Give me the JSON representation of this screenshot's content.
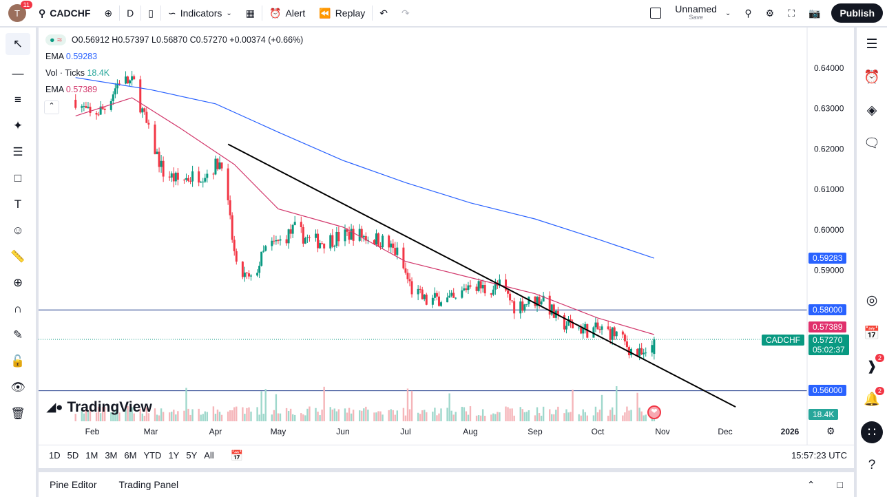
{
  "header": {
    "avatar_initial": "T",
    "avatar_badge": "11",
    "symbol": "CADCHF",
    "interval": "D",
    "indicators": "Indicators",
    "alert": "Alert",
    "replay": "Replay",
    "layout_name": "Unnamed",
    "layout_save": "Save",
    "publish": "Publish"
  },
  "legend": {
    "ohlc": "O0.56912 H0.57397 L0.56870 C0.57270 +0.00374 (+0.66%)",
    "ema1_label": "EMA",
    "ema1_value": "0.59283",
    "vol_label": "Vol · Ticks",
    "vol_value": "18.4K",
    "ema2_label": "EMA",
    "ema2_value": "0.57389"
  },
  "colors": {
    "up": "#089981",
    "down": "#f23645",
    "ema_slow": "#2962ff",
    "ema_fast": "#d2386c",
    "trendline": "#000000",
    "level_line": "#1e3a8a"
  },
  "price_axis": {
    "ticks": [
      "0.64000",
      "0.63000",
      "0.62000",
      "0.61000",
      "0.60000",
      "0.59000"
    ],
    "tick_values": [
      0.64,
      0.63,
      0.62,
      0.61,
      0.6,
      0.59
    ],
    "labels": {
      "ema_slow": "0.59283",
      "level_high": "0.58000",
      "ema_fast": "0.57389",
      "symbol": "CADCHF",
      "last": "0.57270",
      "countdown": "05:02:37",
      "level_low": "0.56000",
      "volume": "18.4K"
    }
  },
  "time_axis": {
    "ticks": [
      "Feb",
      "Mar",
      "Apr",
      "May",
      "Jun",
      "Jul",
      "Aug",
      "Sep",
      "Oct",
      "Nov",
      "Dec",
      "2026"
    ]
  },
  "chart_data": {
    "type": "candlestick",
    "symbol": "CADCHF",
    "interval": "D",
    "weekly_close_dates": [
      "2025-01-24",
      "2025-01-31",
      "2025-02-07",
      "2025-02-14",
      "2025-02-21",
      "2025-02-28",
      "2025-03-07",
      "2025-03-14",
      "2025-03-21",
      "2025-03-28",
      "2025-04-04",
      "2025-04-11",
      "2025-04-18",
      "2025-04-25",
      "2025-05-02",
      "2025-05-09",
      "2025-05-16",
      "2025-05-23",
      "2025-05-30",
      "2025-06-06",
      "2025-06-13",
      "2025-06-20",
      "2025-06-27",
      "2025-07-04",
      "2025-07-11",
      "2025-07-18",
      "2025-07-25",
      "2025-08-01",
      "2025-08-08",
      "2025-08-15",
      "2025-08-22",
      "2025-08-29",
      "2025-09-05",
      "2025-09-12",
      "2025-09-19",
      "2025-09-26",
      "2025-10-03",
      "2025-10-10",
      "2025-10-17",
      "2025-10-24",
      "2025-10-28"
    ],
    "weekly_close": [
      0.632,
      0.628,
      0.63,
      0.637,
      0.636,
      0.624,
      0.614,
      0.612,
      0.613,
      0.614,
      0.617,
      0.59,
      0.587,
      0.595,
      0.597,
      0.6,
      0.597,
      0.597,
      0.598,
      0.599,
      0.598,
      0.597,
      0.594,
      0.585,
      0.582,
      0.583,
      0.582,
      0.587,
      0.585,
      0.586,
      0.581,
      0.582,
      0.583,
      0.577,
      0.576,
      0.575,
      0.575,
      0.574,
      0.57,
      0.568,
      0.5727
    ],
    "ema_slow": {
      "dates": [
        "2025-01-24",
        "2025-03-01",
        "2025-04-01",
        "2025-05-01",
        "2025-06-01",
        "2025-07-01",
        "2025-08-01",
        "2025-09-01",
        "2025-10-01",
        "2025-10-28"
      ],
      "values": [
        0.6375,
        0.6345,
        0.631,
        0.624,
        0.617,
        0.6115,
        0.6065,
        0.6025,
        0.5975,
        0.5928
      ]
    },
    "ema_fast": {
      "dates": [
        "2025-01-24",
        "2025-02-20",
        "2025-03-15",
        "2025-04-10",
        "2025-05-01",
        "2025-06-01",
        "2025-07-01",
        "2025-08-01",
        "2025-09-01",
        "2025-10-01",
        "2025-10-28"
      ],
      "values": [
        0.628,
        0.6325,
        0.625,
        0.616,
        0.605,
        0.6005,
        0.592,
        0.588,
        0.584,
        0.578,
        0.5739
      ]
    },
    "trendline": {
      "from": [
        "2025-04-07",
        0.621
      ],
      "to": [
        "2025-12-06",
        0.556
      ]
    },
    "horizontal_levels": [
      0.58,
      0.56
    ],
    "ylim": [
      0.555,
      0.6415
    ],
    "xlim": [
      "2025-01-22",
      "2026-01-10"
    ]
  },
  "range_buttons": [
    "1D",
    "5D",
    "1M",
    "3M",
    "6M",
    "YTD",
    "1Y",
    "5Y",
    "All"
  ],
  "clock": "15:57:23 UTC",
  "bottom_tabs": [
    "Pine Editor",
    "Trading Panel"
  ],
  "watermark": "TradingView",
  "right_badges": {
    "news": "2",
    "alerts": "2"
  }
}
